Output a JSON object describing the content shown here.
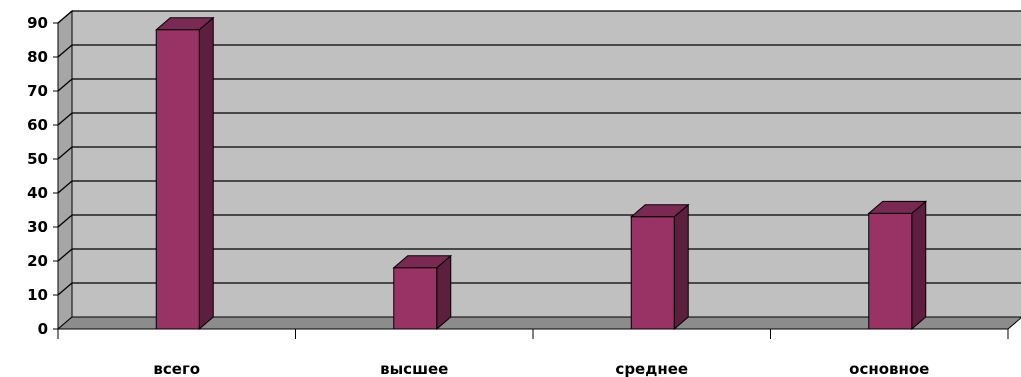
{
  "chart_data": {
    "type": "bar",
    "categories": [
      "всего",
      "высшее",
      "среднее",
      "основное"
    ],
    "values": [
      88,
      18,
      33,
      34
    ],
    "ylim": [
      0,
      90
    ],
    "yticks": [
      0,
      10,
      20,
      30,
      40,
      50,
      60,
      70,
      80,
      90
    ],
    "grid": true,
    "title": "",
    "xlabel": "",
    "ylabel": "",
    "colors": {
      "bar_front": "#993366",
      "bar_top": "#7a2a52",
      "bar_side": "#5c1f3d",
      "plot_back": "#c0c0c0",
      "plot_wall_left": "#a6a6a6",
      "floor": "#8c8c8c",
      "grid": "#000000"
    }
  }
}
